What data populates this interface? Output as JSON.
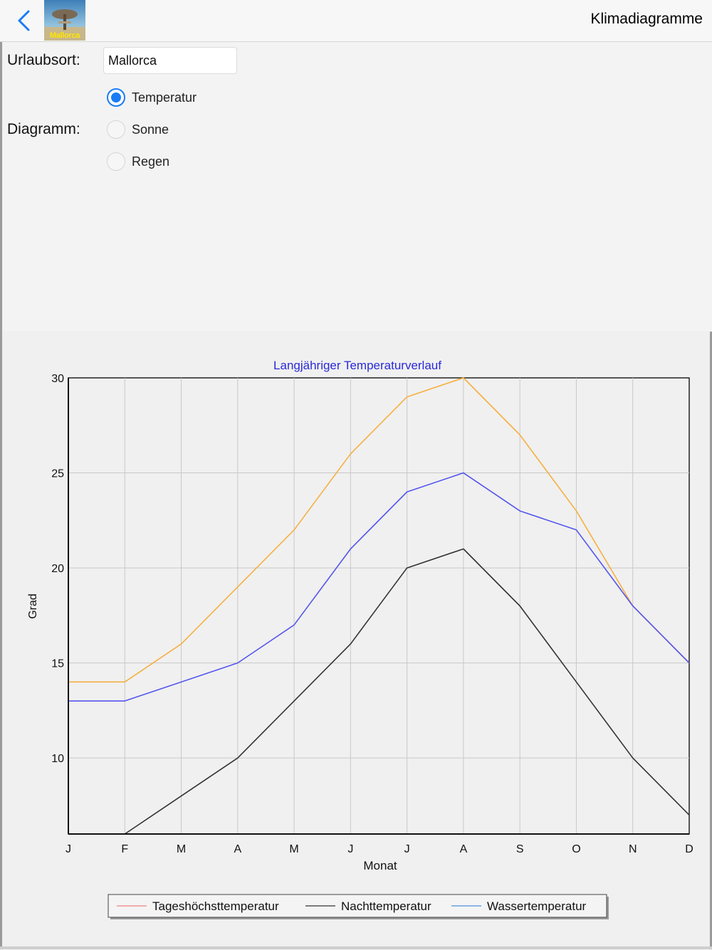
{
  "navbar": {
    "title": "Klimadiagramme",
    "back_icon": "chevron-left-icon",
    "app_icon_label": "Mallorca",
    "accent": "#1a7cf5"
  },
  "form": {
    "resort_label": "Urlaubsort:",
    "resort_value": "Mallorca",
    "diagram_label": "Diagramm:",
    "options": [
      {
        "label": "Temperatur",
        "selected": true
      },
      {
        "label": "Sonne",
        "selected": false
      },
      {
        "label": "Regen",
        "selected": false
      }
    ]
  },
  "chart_data": {
    "type": "line",
    "title": "Langjähriger Temperaturverlauf",
    "xlabel": "Monat",
    "ylabel": "Grad",
    "categories": [
      "J",
      "F",
      "M",
      "A",
      "M",
      "J",
      "J",
      "A",
      "S",
      "O",
      "N",
      "D"
    ],
    "ylim": [
      6,
      30
    ],
    "yticks": [
      10,
      15,
      20,
      25,
      30
    ],
    "grid": true,
    "legend_position": "bottom",
    "series": [
      {
        "name": "Tageshöchsttemperatur",
        "color": "#f5b041",
        "legend_color": "#f08080",
        "values": [
          14,
          14,
          16,
          19,
          22,
          26,
          29,
          30,
          27,
          23,
          18,
          15
        ]
      },
      {
        "name": "Nachttemperatur",
        "color": "#333333",
        "legend_color": "#333333",
        "values": [
          6,
          6,
          8,
          10,
          13,
          16,
          20,
          21,
          18,
          14,
          10,
          7
        ]
      },
      {
        "name": "Wassertemperatur",
        "color": "#5555ee",
        "legend_color": "#4a90e2",
        "values": [
          13,
          13,
          14,
          15,
          17,
          21,
          24,
          25,
          23,
          22,
          18,
          15
        ]
      }
    ]
  }
}
